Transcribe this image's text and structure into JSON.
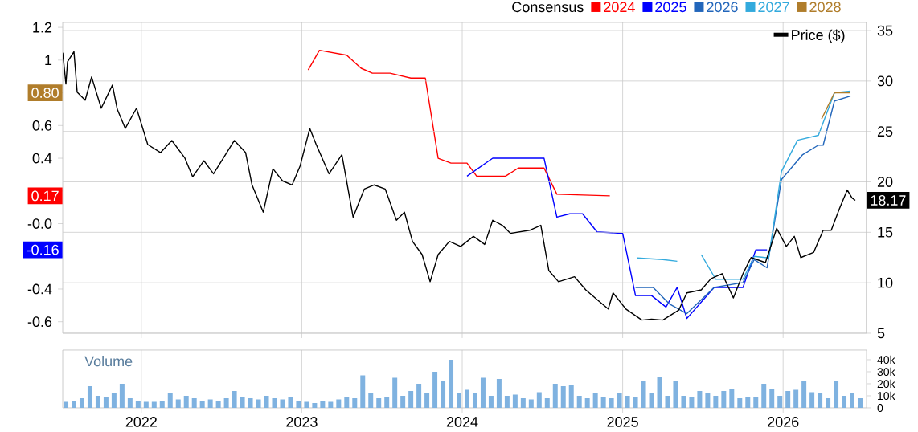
{
  "chart_data": [
    {
      "type": "line",
      "legend_title": "Consensus",
      "annotations": [
        {
          "text": "0.80",
          "y": 0.8
        },
        {
          "text": "0.17",
          "y": 0.17
        },
        {
          "text": "-0.16",
          "y": -0.16
        }
      ],
      "legend": "top right",
      "grid": true,
      "tick_labels": "y",
      "marker": "none",
      "xlim": [
        2021.51,
        2026.52
      ],
      "xticks": [
        2022,
        2023,
        2024,
        2025,
        2026
      ],
      "ylim": [
        -0.67,
        1.23
      ],
      "yticks": [
        1.2,
        1,
        {
          "value": 0.8,
          "label": null
        },
        0.6,
        0.4,
        {
          "value": 0.2,
          "label": null
        },
        {
          "value": 0,
          "label": "-0.0"
        },
        {
          "value": -0.2,
          "label": null
        },
        -0.4,
        -0.6
      ],
      "y2lim": [
        5,
        35.8
      ],
      "y2ticks": [
        5,
        10,
        15,
        20,
        25,
        30,
        35
      ],
      "series": [
        {
          "name": "2024",
          "color": "#ff0000",
          "x": [
            2023.04,
            2023.11,
            2023.28,
            2023.37,
            2023.44,
            2023.55,
            2023.68,
            2023.77,
            2023.85,
            2023.93,
            2024.03,
            2024.09,
            2024.27,
            2024.35,
            2024.51,
            2024.59,
            2024.92
          ],
          "values": [
            0.94,
            1.06,
            1.03,
            0.95,
            0.92,
            0.92,
            0.89,
            0.89,
            0.4,
            0.37,
            0.37,
            0.29,
            0.29,
            0.34,
            0.34,
            0.18,
            0.17
          ]
        },
        {
          "name": "2025",
          "color": "#0000ff",
          "x": [
            2024.03,
            2024.19,
            2024.51,
            2024.59,
            2024.67,
            2024.75,
            2024.84,
            2025.0,
            2025.08,
            2025.18,
            2025.27,
            2025.34,
            2025.4,
            2025.57,
            2025.75,
            2025.83,
            2025.9
          ],
          "values": [
            0.29,
            0.4,
            0.4,
            0.04,
            0.06,
            0.06,
            -0.05,
            -0.06,
            -0.44,
            -0.44,
            -0.51,
            -0.39,
            -0.58,
            -0.39,
            -0.39,
            -0.16,
            -0.16
          ]
        },
        {
          "name": "2026",
          "color": "#2266bb",
          "x": [
            2025.08,
            2025.19,
            2025.29,
            2025.4,
            2025.57,
            2025.75,
            2025.82,
            2025.9,
            2025.99,
            2026.12,
            2026.22,
            2026.25,
            2026.32,
            2026.42
          ],
          "values": [
            -0.39,
            -0.39,
            -0.49,
            -0.55,
            -0.39,
            -0.36,
            -0.22,
            -0.27,
            0.27,
            0.42,
            0.48,
            0.48,
            0.75,
            0.78
          ]
        },
        {
          "name": "2027",
          "color": "#33aadd",
          "x": [
            2025.09,
            2025.25,
            2025.34,
            2025.41,
            2025.49,
            2025.58,
            2025.75,
            2025.82,
            2025.91,
            2025.99,
            2026.09,
            2026.22,
            2026.32,
            2026.42
          ],
          "values": [
            -0.21,
            -0.22,
            -0.23,
            null,
            -0.19,
            -0.34,
            -0.34,
            -0.2,
            -0.21,
            0.32,
            0.51,
            0.54,
            0.8,
            0.81
          ]
        },
        {
          "name": "2028",
          "color": "#b07d2b",
          "x": [
            2026.24,
            2026.32,
            2026.42
          ],
          "values": [
            0.64,
            0.8,
            0.8
          ]
        },
        {
          "name": "Price ($)",
          "color": "#000000",
          "axis": "y2",
          "x": [
            2021.51,
            2021.53,
            2021.54,
            2021.58,
            2021.6,
            2021.65,
            2021.69,
            2021.75,
            2021.82,
            2021.85,
            2021.9,
            2021.97,
            2022.04,
            2022.12,
            2022.19,
            2022.27,
            2022.32,
            2022.39,
            2022.45,
            2022.58,
            2022.65,
            2022.69,
            2022.76,
            2022.82,
            2022.88,
            2022.94,
            2022.99,
            2023.05,
            2023.09,
            2023.17,
            2023.25,
            2023.32,
            2023.39,
            2023.45,
            2023.52,
            2023.59,
            2023.64,
            2023.69,
            2023.75,
            2023.8,
            2023.85,
            2023.92,
            2023.99,
            2024.07,
            2024.14,
            2024.19,
            2024.25,
            2024.3,
            2024.42,
            2024.49,
            2024.54,
            2024.6,
            2024.7,
            2024.77,
            2024.85,
            2024.91,
            2024.94,
            2025.02,
            2025.12,
            2025.18,
            2025.25,
            2025.35,
            2025.4,
            2025.49,
            2025.55,
            2025.62,
            2025.69,
            2025.75,
            2025.8,
            2025.89,
            2025.96,
            2026.02,
            2026.07,
            2026.11,
            2026.19,
            2026.25,
            2026.3,
            2026.35,
            2026.4,
            2026.43,
            2026.45
          ],
          "values": [
            32.8,
            29.7,
            31.9,
            32.9,
            28.9,
            28.1,
            30.4,
            27.3,
            29.6,
            27.2,
            25.3,
            27.3,
            23.7,
            22.9,
            24.1,
            22.4,
            20.5,
            22.1,
            20.8,
            24.1,
            22.9,
            19.7,
            17.0,
            21.3,
            20.1,
            19.7,
            21.6,
            25.3,
            23.7,
            20.8,
            22.7,
            16.5,
            19.3,
            19.7,
            19.3,
            16.2,
            17.0,
            14.1,
            12.8,
            10.1,
            12.8,
            14.1,
            13.6,
            14.6,
            13.8,
            16.2,
            15.7,
            14.9,
            15.2,
            15.7,
            11.2,
            10.1,
            10.6,
            9.3,
            8.2,
            7.4,
            9.0,
            7.4,
            6.3,
            6.4,
            6.3,
            7.3,
            9.0,
            9.3,
            10.4,
            10.9,
            8.5,
            10.9,
            12.5,
            12.0,
            15.4,
            13.6,
            14.6,
            12.5,
            13.0,
            15.2,
            15.2,
            17.3,
            19.2,
            18.4,
            18.17
          ],
          "value_labels": [
            null,
            null,
            null,
            null,
            null,
            null,
            null,
            null,
            null,
            null,
            null,
            null,
            null,
            null,
            null,
            null,
            null,
            null,
            null,
            null,
            null,
            null,
            null,
            null,
            null,
            null,
            null,
            null,
            null,
            null,
            null,
            null,
            null,
            null,
            null,
            null,
            null,
            null,
            null,
            null,
            null,
            null,
            null,
            null,
            null,
            null,
            null,
            null,
            null,
            null,
            null,
            null,
            null,
            null,
            null,
            null,
            null,
            null,
            null,
            null,
            null,
            null,
            null,
            null,
            null,
            null,
            null,
            null,
            null,
            null,
            null,
            null,
            null,
            null,
            null,
            null,
            null,
            null,
            null,
            null,
            "18.17"
          ]
        }
      ]
    },
    {
      "type": "bar",
      "title": "Volume",
      "color": "#7fb2e0",
      "grid": "x",
      "xlim": [
        2021.51,
        2026.52
      ],
      "xticks": [
        2022,
        2023,
        2024,
        2025,
        2026
      ],
      "ylim": [
        0,
        48000
      ],
      "yticks": [
        0,
        {
          "value": 10000,
          "label": "10k"
        },
        {
          "value": 20000,
          "label": "20k"
        },
        {
          "value": 30000,
          "label": "30k"
        },
        {
          "value": 40000,
          "label": "40k"
        }
      ],
      "x": [
        2021.53,
        2021.58,
        2021.63,
        2021.68,
        2021.73,
        2021.78,
        2021.83,
        2021.88,
        2021.93,
        2021.98,
        2022.03,
        2022.08,
        2022.13,
        2022.18,
        2022.23,
        2022.28,
        2022.33,
        2022.38,
        2022.43,
        2022.48,
        2022.53,
        2022.58,
        2022.63,
        2022.68,
        2022.73,
        2022.78,
        2022.83,
        2022.88,
        2022.93,
        2022.98,
        2023.03,
        2023.08,
        2023.13,
        2023.18,
        2023.23,
        2023.28,
        2023.33,
        2023.38,
        2023.43,
        2023.48,
        2023.53,
        2023.58,
        2023.63,
        2023.68,
        2023.73,
        2023.78,
        2023.83,
        2023.88,
        2023.93,
        2023.98,
        2024.03,
        2024.08,
        2024.13,
        2024.18,
        2024.23,
        2024.28,
        2024.33,
        2024.38,
        2024.43,
        2024.48,
        2024.53,
        2024.58,
        2024.63,
        2024.68,
        2024.73,
        2024.78,
        2024.83,
        2024.88,
        2024.93,
        2024.98,
        2025.03,
        2025.08,
        2025.13,
        2025.18,
        2025.23,
        2025.28,
        2025.33,
        2025.38,
        2025.43,
        2025.48,
        2025.53,
        2025.58,
        2025.63,
        2025.68,
        2025.73,
        2025.78,
        2025.83,
        2025.88,
        2025.93,
        2025.98,
        2026.03,
        2026.08,
        2026.13,
        2026.18,
        2026.23,
        2026.28,
        2026.33,
        2026.38,
        2026.43,
        2026.48
      ],
      "values": [
        5000,
        6000,
        8000,
        18000,
        10000,
        9000,
        12000,
        20000,
        8000,
        6000,
        5000,
        5000,
        6000,
        12000,
        7000,
        10000,
        8000,
        6000,
        7000,
        6000,
        8000,
        14000,
        9000,
        8000,
        7000,
        10000,
        8000,
        7000,
        9000,
        6000,
        5000,
        4000,
        6000,
        5000,
        7000,
        9000,
        8000,
        27000,
        12000,
        8000,
        9000,
        25000,
        10000,
        14000,
        20000,
        12000,
        30000,
        22000,
        40000,
        12000,
        15000,
        12000,
        25000,
        10000,
        24000,
        10000,
        11000,
        8000,
        7000,
        13000,
        8000,
        20000,
        18000,
        19000,
        10000,
        8000,
        12000,
        9000,
        8000,
        12000,
        10000,
        9000,
        22000,
        12000,
        26000,
        10000,
        22000,
        10000,
        9000,
        14000,
        12000,
        10000,
        14000,
        16000,
        8000,
        9000,
        9000,
        20000,
        16000,
        10000,
        14000,
        15000,
        22000,
        13000,
        12000,
        8000,
        22000,
        10000,
        12000,
        8000
      ]
    }
  ]
}
